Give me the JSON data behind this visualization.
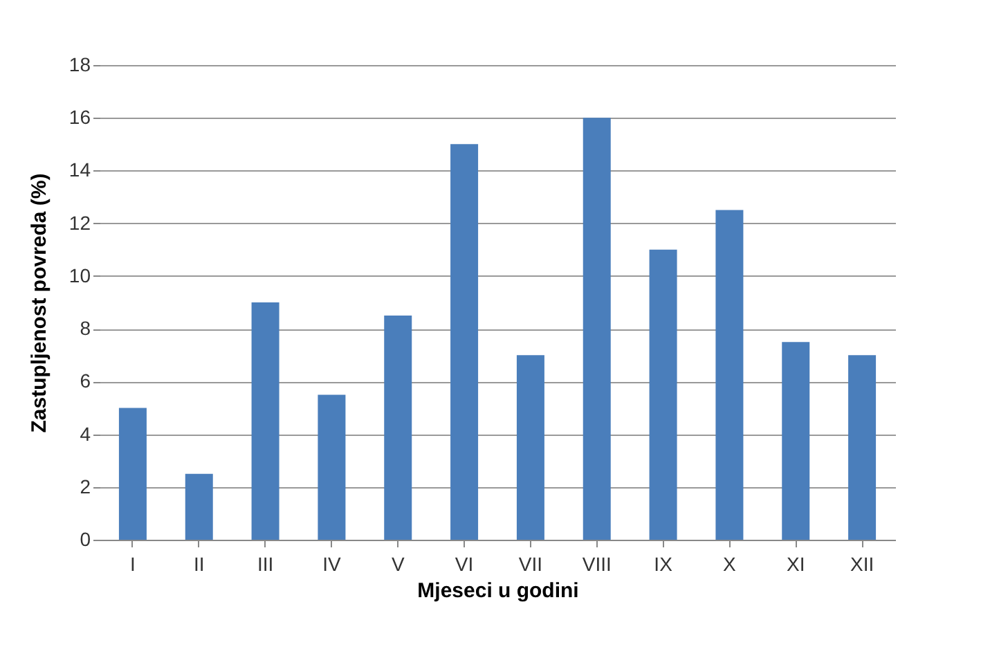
{
  "chart_data": {
    "type": "bar",
    "xlabel": "Mjeseci u godini",
    "ylabel": "Zastupljenost povreda (%)",
    "categories": [
      "I",
      "II",
      "III",
      "IV",
      "V",
      "VI",
      "VII",
      "VIII",
      "IX",
      "X",
      "XI",
      "XII"
    ],
    "values": [
      5,
      2.5,
      9,
      5.5,
      8.5,
      15,
      7,
      16,
      11,
      12.5,
      7.5,
      7
    ],
    "color": "#4a7ebb",
    "ylim": [
      0,
      18
    ],
    "yticks": [
      0,
      2,
      4,
      6,
      8,
      10,
      12,
      14,
      16,
      18
    ],
    "grid": "y"
  }
}
